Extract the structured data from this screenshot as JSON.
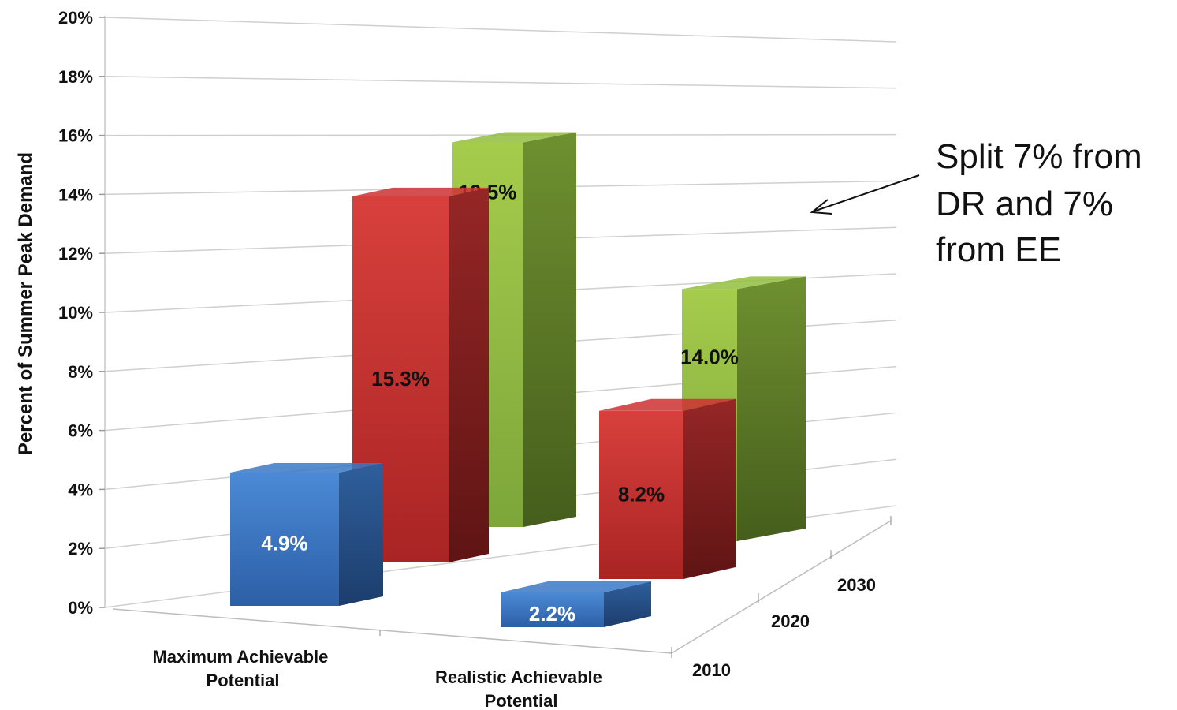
{
  "chart_data": {
    "type": "bar",
    "title": "",
    "ylabel": "Percent of Summer Peak Demand",
    "ylim": [
      0,
      20
    ],
    "y_ticks": [
      "0%",
      "2%",
      "4%",
      "6%",
      "8%",
      "10%",
      "12%",
      "14%",
      "16%",
      "18%",
      "20%"
    ],
    "categories": [
      "Maximum Achievable Potential",
      "Realistic Achievable Potential"
    ],
    "category_lines": [
      [
        "Maximum Achievable",
        "Potential"
      ],
      [
        "Realistic Achievable",
        "Potential"
      ]
    ],
    "depth_categories": [
      "2010",
      "2020",
      "2030"
    ],
    "series": [
      {
        "name": "2010",
        "values": [
          4.9,
          2.2
        ],
        "labels": [
          "4.9%",
          "2.2%"
        ],
        "color": "#3a78c6"
      },
      {
        "name": "2020",
        "values": [
          15.3,
          8.2
        ],
        "labels": [
          "15.3%",
          "8.2%"
        ],
        "color": "#cc3131"
      },
      {
        "name": "2030",
        "values": [
          19.5,
          14.0
        ],
        "labels": [
          "19.5%",
          "14.0%"
        ],
        "color": "#92bd3e"
      }
    ],
    "annotation": {
      "lines": [
        "Split  7% from",
        "DR and 7%",
        "from EE"
      ],
      "points_to": "Realistic Achievable Potential 2030"
    },
    "grid": true,
    "legend": "none"
  }
}
